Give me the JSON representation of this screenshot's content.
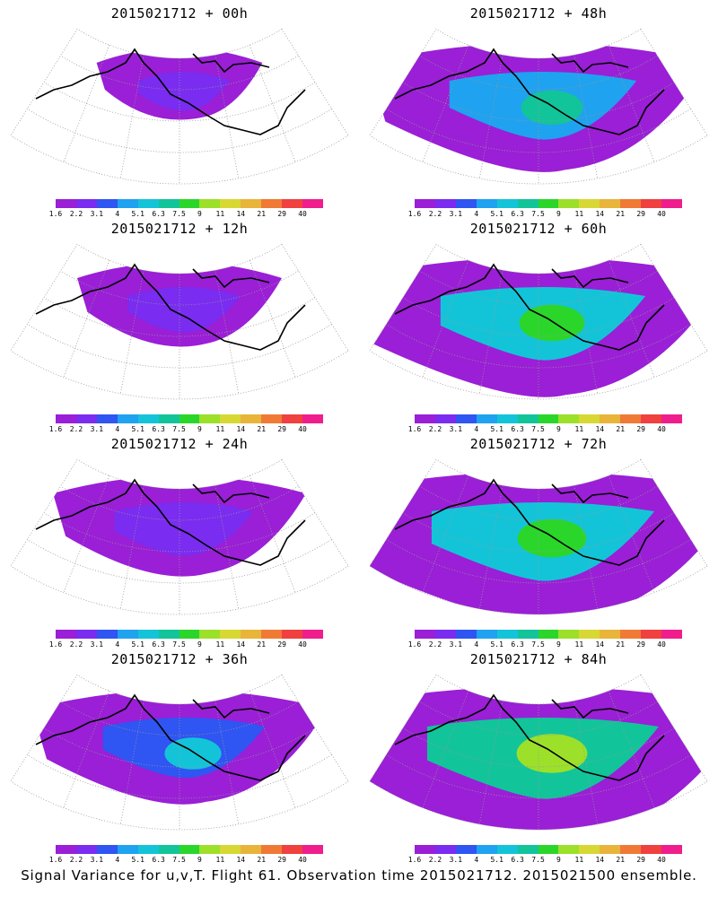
{
  "panels": [
    {
      "id": "p00",
      "title": "2015021712 + 00h",
      "spread": 0.18
    },
    {
      "id": "p48",
      "title": "2015021712 + 48h",
      "spread": 0.72
    },
    {
      "id": "p12",
      "title": "2015021712 + 12h",
      "spread": 0.3
    },
    {
      "id": "p60",
      "title": "2015021712 + 60h",
      "spread": 0.82
    },
    {
      "id": "p24",
      "title": "2015021712 + 24h",
      "spread": 0.45
    },
    {
      "id": "p72",
      "title": "2015021712 + 72h",
      "spread": 0.92
    },
    {
      "id": "p36",
      "title": "2015021712 + 36h",
      "spread": 0.58
    },
    {
      "id": "p84",
      "title": "2015021712 + 84h",
      "spread": 0.97
    }
  ],
  "colorbar": {
    "labels": [
      "1.6",
      "2.2",
      "3.1",
      "4",
      "5.1",
      "6.3",
      "7.5",
      "9",
      "11",
      "14",
      "21",
      "29",
      "40"
    ],
    "colors": [
      "#9a1fd6",
      "#7a2cf0",
      "#2f55f2",
      "#1fa2f0",
      "#13c4d8",
      "#12c49a",
      "#2bd62a",
      "#9ce02a",
      "#d8d834",
      "#e8b43a",
      "#f07a35",
      "#f04040",
      "#f01e8c"
    ]
  },
  "caption": "Signal Variance for u,v,T. Flight 61. Observation time 2015021712. 2015021500 ensemble."
}
